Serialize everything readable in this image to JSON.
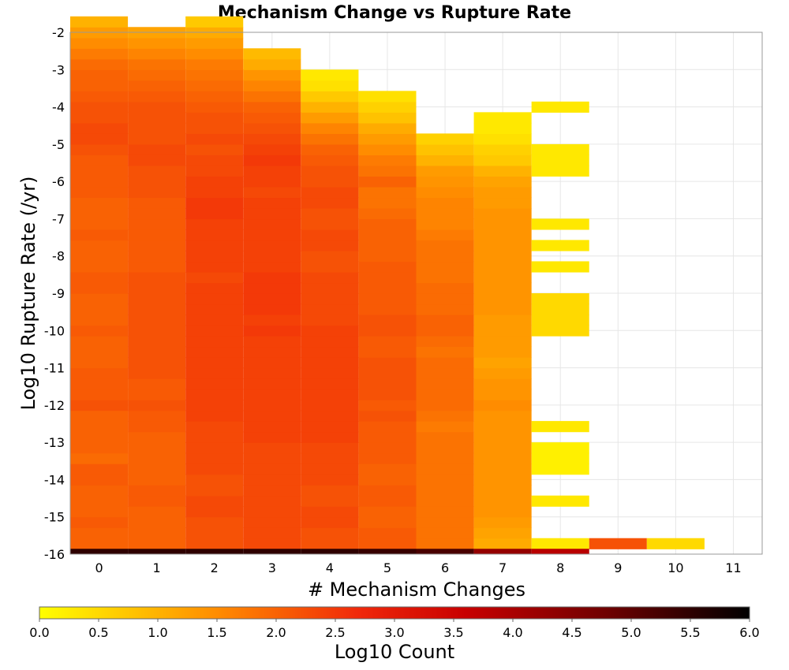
{
  "chart_data": {
    "type": "heatmap",
    "title": "Mechanism Change vs Rupture Rate",
    "xlabel": "# Mechanism Changes",
    "ylabel": "Log10 Rupture Rate (/yr)",
    "colorbar_label": "Log10 Count",
    "x_ticks": [
      "0",
      "1",
      "2",
      "3",
      "4",
      "5",
      "6",
      "7",
      "8",
      "9",
      "10",
      "11"
    ],
    "y_ticks": [
      "-2",
      "-3",
      "-4",
      "-5",
      "-6",
      "-7",
      "-8",
      "-9",
      "-10",
      "-11",
      "-12",
      "-13",
      "-14",
      "-15",
      "-16"
    ],
    "colorbar_ticks": [
      "0.0",
      "0.5",
      "1.0",
      "1.5",
      "2.0",
      "2.5",
      "3.0",
      "3.5",
      "4.0",
      "4.5",
      "5.0",
      "5.5",
      "6.0"
    ],
    "xlim": [
      -0.5,
      11.5
    ],
    "ylim": [
      -16,
      -2
    ],
    "color_range": [
      0,
      6
    ],
    "colormap": "yellow-orange-red-black",
    "bin_height": 0.2857,
    "grid": true,
    "columns": [
      {
        "x": 0,
        "y_start": -15.857,
        "values": [
          2.0,
          2.0,
          2.1,
          2.0,
          2.0,
          2.0,
          2.1,
          2.1,
          1.9,
          2.0,
          2.0,
          2.0,
          2.0,
          2.2,
          2.1,
          2.1,
          2.1,
          2.0,
          2.0,
          2.0,
          2.1,
          2.0,
          2.0,
          2.0,
          2.1,
          2.1,
          2.0,
          2.0,
          2.0,
          2.1,
          2.0,
          2.0,
          2.0,
          2.1,
          2.1,
          2.1,
          2.1,
          2.2,
          2.3,
          2.3,
          2.2,
          2.2,
          2.1,
          2.0,
          2.0,
          1.9,
          1.7,
          1.5,
          1.3,
          1.0
        ]
      },
      {
        "x": 1,
        "y_start": -15.857,
        "values": [
          2.0,
          2.0,
          2.0,
          2.0,
          2.1,
          2.1,
          2.0,
          2.0,
          2.0,
          2.0,
          2.0,
          2.1,
          2.1,
          2.2,
          2.1,
          2.1,
          2.2,
          2.2,
          2.2,
          2.2,
          2.2,
          2.2,
          2.2,
          2.2,
          2.2,
          2.2,
          2.1,
          2.1,
          2.1,
          2.1,
          2.1,
          2.1,
          2.1,
          2.2,
          2.2,
          2.2,
          2.3,
          2.3,
          2.2,
          2.2,
          2.2,
          2.2,
          2.1,
          2.0,
          1.9,
          1.8,
          1.6,
          1.4,
          1.2
        ]
      },
      {
        "x": 2,
        "y_start": -15.857,
        "values": [
          2.2,
          2.2,
          2.2,
          2.3,
          2.3,
          2.2,
          2.2,
          2.3,
          2.3,
          2.3,
          2.3,
          2.3,
          2.4,
          2.4,
          2.4,
          2.4,
          2.4,
          2.4,
          2.4,
          2.4,
          2.4,
          2.4,
          2.4,
          2.4,
          2.4,
          2.3,
          2.4,
          2.4,
          2.4,
          2.4,
          2.4,
          2.5,
          2.5,
          2.4,
          2.4,
          2.3,
          2.3,
          2.2,
          2.3,
          2.2,
          2.2,
          2.1,
          2.0,
          1.9,
          1.8,
          1.7,
          1.5,
          1.3,
          1.1,
          0.7
        ]
      },
      {
        "x": 3,
        "y_start": -15.857,
        "values": [
          2.3,
          2.3,
          2.3,
          2.3,
          2.3,
          2.3,
          2.3,
          2.3,
          2.3,
          2.3,
          2.4,
          2.4,
          2.4,
          2.4,
          2.4,
          2.4,
          2.4,
          2.4,
          2.4,
          2.4,
          2.5,
          2.4,
          2.5,
          2.5,
          2.5,
          2.5,
          2.4,
          2.4,
          2.4,
          2.4,
          2.4,
          2.4,
          2.4,
          2.3,
          2.4,
          2.4,
          2.5,
          2.4,
          2.3,
          2.2,
          2.1,
          2.0,
          1.8,
          1.6,
          1.4,
          1.1,
          0.9
        ]
      },
      {
        "x": 4,
        "y_start": -15.857,
        "values": [
          2.2,
          2.2,
          2.3,
          2.3,
          2.2,
          2.2,
          2.3,
          2.3,
          2.3,
          2.3,
          2.4,
          2.4,
          2.4,
          2.4,
          2.4,
          2.4,
          2.4,
          2.4,
          2.4,
          2.4,
          2.4,
          2.3,
          2.3,
          2.3,
          2.3,
          2.3,
          2.2,
          2.2,
          2.3,
          2.3,
          2.2,
          2.2,
          2.3,
          2.3,
          2.2,
          2.2,
          2.1,
          2.0,
          1.8,
          1.6,
          1.3,
          1.0,
          0.7,
          0.4,
          0.3
        ]
      },
      {
        "x": 5,
        "y_start": -15.857,
        "values": [
          2.1,
          2.1,
          2.0,
          2.0,
          2.1,
          2.1,
          2.0,
          2.0,
          2.1,
          2.1,
          2.1,
          2.1,
          2.2,
          2.1,
          2.2,
          2.2,
          2.2,
          2.2,
          2.1,
          2.1,
          2.2,
          2.2,
          2.1,
          2.1,
          2.1,
          2.1,
          2.1,
          2.0,
          2.0,
          2.0,
          2.0,
          1.9,
          1.8,
          1.8,
          2.0,
          1.8,
          1.7,
          1.5,
          1.3,
          1.1,
          0.8,
          0.6,
          0.4
        ]
      },
      {
        "x": 6,
        "y_start": -15.857,
        "values": [
          1.8,
          1.8,
          1.8,
          1.8,
          1.8,
          1.8,
          1.8,
          1.8,
          1.8,
          1.8,
          1.8,
          1.7,
          1.8,
          1.9,
          1.9,
          1.9,
          1.9,
          1.9,
          1.8,
          1.9,
          2.0,
          2.0,
          1.9,
          1.9,
          1.9,
          1.8,
          1.8,
          1.8,
          1.8,
          1.7,
          1.6,
          1.6,
          1.6,
          1.5,
          1.4,
          1.3,
          1.0,
          0.8,
          0.6
        ]
      },
      {
        "x": 7,
        "y_start": -15.857,
        "values": [
          1.1,
          1.2,
          1.3,
          1.4,
          1.4,
          1.4,
          1.4,
          1.4,
          1.4,
          1.4,
          1.4,
          1.4,
          1.4,
          1.5,
          1.4,
          1.4,
          1.3,
          1.2,
          1.3,
          1.3,
          1.3,
          1.3,
          1.4,
          1.4,
          1.4,
          1.4,
          1.4,
          1.4,
          1.4,
          1.4,
          1.4,
          1.4,
          1.3,
          1.3,
          1.2,
          1.0,
          0.7,
          0.6,
          0.4,
          0.3,
          0.3
        ]
      },
      {
        "x": 8,
        "y_start": -15.857,
        "values": [
          0.3,
          null,
          null,
          null,
          0.3,
          null,
          null,
          0.2,
          0.2,
          0.2,
          null,
          0.3,
          null,
          null,
          null,
          null,
          null,
          null,
          null,
          null,
          0.5,
          0.5,
          0.5,
          0.5,
          null,
          null,
          0.3,
          null,
          0.3,
          null,
          0.3,
          null,
          null,
          null,
          null,
          0.3,
          0.3,
          0.3,
          null,
          null,
          null,
          0.3
        ]
      },
      {
        "x": 9,
        "y_start": -15.857,
        "values": [
          2.2
        ]
      },
      {
        "x": 10,
        "y_start": -15.857,
        "values": [
          0.5
        ]
      }
    ],
    "bottom_row": {
      "y_start": -16,
      "values": [
        5.5,
        5.5,
        5.5,
        5.5,
        5.5,
        5.4,
        5.2,
        4.3,
        3.8,
        null,
        null
      ]
    }
  }
}
